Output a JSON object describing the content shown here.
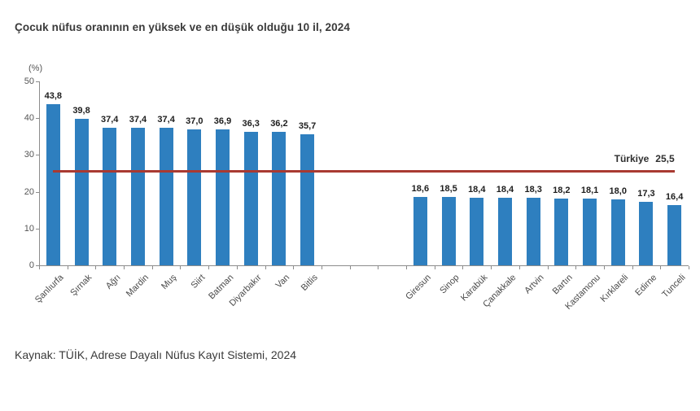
{
  "page": {
    "title": "Çocuk nüfus oranının en yüksek ve en düşük olduğu 10 il, 2024",
    "source": "Kaynak: TÜİK, Adrese Dayalı Nüfus Kayıt Sistemi, 2024"
  },
  "chart_data": {
    "type": "bar",
    "title": "Çocuk nüfus oranının en yüksek ve en düşük olduğu 10 il, 2024",
    "unit_label": "(%)",
    "ylim": [
      0,
      50
    ],
    "y_ticks": [
      0,
      10,
      20,
      30,
      40,
      50
    ],
    "grid": false,
    "decimal_separator": ",",
    "bar_color": "#2E7FBF",
    "axis_color": "#8c8c8c",
    "group_gap_slots": 3,
    "series": [
      {
        "id": "highest-10",
        "categories": [
          "Şanlıurfa",
          "Şırnak",
          "Ağrı",
          "Mardin",
          "Muş",
          "Siirt",
          "Batman",
          "Diyarbakır",
          "Van",
          "Bitlis"
        ],
        "values": [
          43.8,
          39.8,
          37.4,
          37.4,
          37.4,
          37.0,
          36.9,
          36.3,
          36.2,
          35.7
        ]
      },
      {
        "id": "lowest-10",
        "categories": [
          "Giresun",
          "Sinop",
          "Karabük",
          "Çanakkale",
          "Artvin",
          "Bartın",
          "Kastamonu",
          "Kırklareli",
          "Edirne",
          "Tunceli"
        ],
        "values": [
          18.6,
          18.5,
          18.4,
          18.4,
          18.3,
          18.2,
          18.1,
          18.0,
          17.3,
          16.4
        ]
      }
    ],
    "reference_line": {
      "label": "Türkiye",
      "value": 25.5,
      "display": "25,5",
      "color": "#A93A32"
    }
  }
}
